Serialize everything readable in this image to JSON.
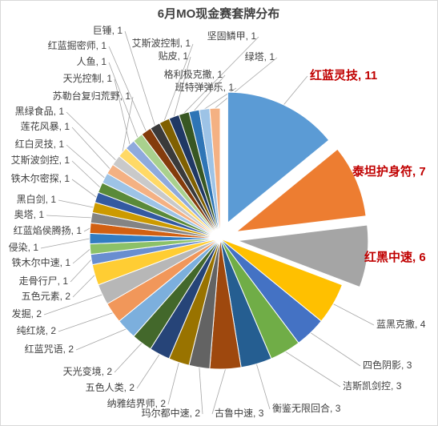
{
  "chart_data": {
    "type": "pie",
    "title": "6月MO现金赛套牌分布",
    "categories": [
      "红蓝灵技",
      "泰坦护身符",
      "红黑中速",
      "蓝黑克撒",
      "四色阴影",
      "洁斯凯剑控",
      "衡鉴无限回合",
      "古鲁中速",
      "玛尔都中速",
      "纳雅结界师",
      "五色人类",
      "天光变境",
      "红蓝咒语",
      "纯红烧",
      "发掘",
      "五色元素",
      "走骨行尸",
      "铁木尔中速",
      "侵染",
      "红蓝焰侯腾扬",
      "奥塔",
      "黑白剑",
      "铁木尔密探",
      "艾斯波剑控",
      "红白灵技",
      "莲花风暴",
      "黑绿食品",
      "苏勒台复归荒野",
      "天光控制",
      "人鱼",
      "红蓝掘密师",
      "巨锤",
      "艾斯波控制",
      "贴皮",
      "坚固鳞甲",
      "格利极克撒",
      "班特弹弹乐",
      "绿塔"
    ],
    "values": [
      11,
      7,
      6,
      4,
      3,
      3,
      3,
      3,
      2,
      2,
      2,
      2,
      2,
      2,
      2,
      2,
      1,
      1,
      1,
      1,
      1,
      1,
      1,
      1,
      1,
      1,
      1,
      1,
      1,
      1,
      1,
      1,
      1,
      1,
      1,
      1,
      1,
      1
    ],
    "colors": [
      "#5b9bd5",
      "#ed7d31",
      "#a5a5a5",
      "#ffc000",
      "#4472c4",
      "#70ad47",
      "#255e91",
      "#9e480e",
      "#636363",
      "#997300",
      "#264478",
      "#43682b",
      "#7cafdd",
      "#f1975a",
      "#b7b7b7",
      "#ffcd33",
      "#698ed0",
      "#8cc168",
      "#327dc2",
      "#d26012",
      "#848484",
      "#cc9a00",
      "#335aa1",
      "#5a8a39",
      "#9dc3e6",
      "#f4b183",
      "#c9c9c9",
      "#ffd966",
      "#8faadc",
      "#a9d18e",
      "#843c0c",
      "#3a3a3a",
      "#806000",
      "#203864",
      "#385723",
      "#2e75b6",
      "#9dc3e6",
      "#f4b183"
    ],
    "label_separator": ", ",
    "exploded": [
      0,
      1,
      2
    ],
    "exploded_label_color": "#c00000"
  }
}
